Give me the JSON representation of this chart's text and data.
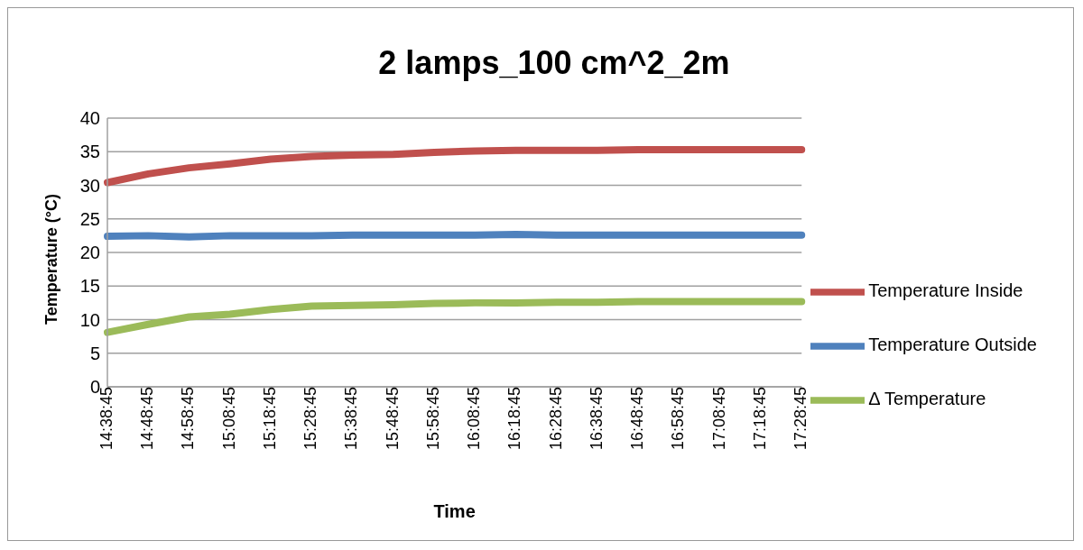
{
  "chart_data": {
    "type": "line",
    "title": "2 lamps_100 cm^2_2m",
    "xlabel": "Time",
    "ylabel": "Temperature (°C)",
    "categories": [
      "14:38:45",
      "14:48:45",
      "14:58:45",
      "15:08:45",
      "15:18:45",
      "15:28:45",
      "15:38:45",
      "15:48:45",
      "15:58:45",
      "16:08:45",
      "16:18:45",
      "16:28:45",
      "16:38:45",
      "16:48:45",
      "16:58:45",
      "17:08:45",
      "17:18:45",
      "17:28:45"
    ],
    "series": [
      {
        "name": "Temperature Outside",
        "color": "#4f81bd",
        "values": [
          22.4,
          22.5,
          22.3,
          22.5,
          22.5,
          22.5,
          22.6,
          22.6,
          22.6,
          22.6,
          22.7,
          22.6,
          22.6,
          22.6,
          22.6,
          22.6,
          22.6,
          22.6
        ]
      },
      {
        "name": "Temperature Inside",
        "color": "#c0504d",
        "values": [
          30.4,
          31.7,
          32.6,
          33.2,
          33.9,
          34.3,
          34.5,
          34.6,
          34.9,
          35.1,
          35.2,
          35.2,
          35.2,
          35.3,
          35.3,
          35.3,
          35.3,
          35.3
        ]
      },
      {
        "name": "Δ Temperature",
        "color": "#9bbb59",
        "values": [
          8.1,
          9.3,
          10.4,
          10.8,
          11.5,
          12.0,
          12.1,
          12.2,
          12.4,
          12.5,
          12.5,
          12.6,
          12.6,
          12.7,
          12.7,
          12.7,
          12.7,
          12.7
        ]
      }
    ],
    "ylim": [
      0,
      40
    ],
    "yticks": [
      0,
      5,
      10,
      15,
      20,
      25,
      30,
      35,
      40
    ],
    "grid": "y",
    "legend": "right",
    "marker": "none",
    "line_style": "solid"
  }
}
